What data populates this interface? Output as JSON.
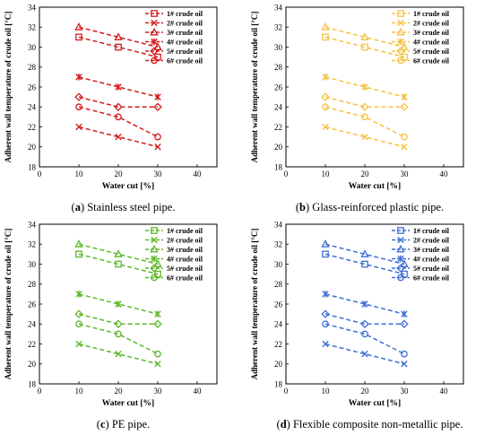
{
  "chart_data": [
    {
      "type": "line",
      "panel_letter": "a",
      "caption": "Stainless steel pipe.",
      "color": "#d41c1c",
      "xlabel": "Water cut [%]",
      "ylabel": "Adherent wall temperature of crude oil [°C]",
      "xlim": [
        0,
        45
      ],
      "ylim": [
        18,
        34
      ],
      "xticks": [
        0,
        10,
        20,
        30,
        40
      ],
      "yticks": [
        18,
        20,
        22,
        24,
        26,
        28,
        30,
        32,
        34
      ],
      "legend": "top-right",
      "x": [
        10,
        20,
        30
      ],
      "series": [
        {
          "name": "1# crude oil",
          "marker": "square",
          "values": [
            31,
            30,
            29
          ]
        },
        {
          "name": "2# crude oil",
          "marker": "x",
          "values": [
            22,
            21,
            20
          ]
        },
        {
          "name": "3# crude oil",
          "marker": "triangle",
          "values": [
            32,
            31,
            30
          ]
        },
        {
          "name": "4# crude oil",
          "marker": "star",
          "values": [
            27,
            26,
            25
          ]
        },
        {
          "name": "5# crude oil",
          "marker": "diamond",
          "values": [
            25,
            24,
            24
          ]
        },
        {
          "name": "6# crude oil",
          "marker": "circle",
          "values": [
            24,
            23,
            21
          ]
        }
      ]
    },
    {
      "type": "line",
      "panel_letter": "b",
      "caption": "Glass-reinforced plastic pipe.",
      "color": "#f5c342",
      "xlabel": "Water cut [%]",
      "ylabel": "Adherent wall temperature of crude oil [°C]",
      "xlim": [
        0,
        45
      ],
      "ylim": [
        18,
        34
      ],
      "xticks": [
        0,
        10,
        20,
        30,
        40
      ],
      "yticks": [
        18,
        20,
        22,
        24,
        26,
        28,
        30,
        32,
        34
      ],
      "legend": "top-right",
      "x": [
        10,
        20,
        30
      ],
      "series": [
        {
          "name": "1# crude oil",
          "marker": "square",
          "values": [
            31,
            30,
            29
          ]
        },
        {
          "name": "2# crude oil",
          "marker": "x",
          "values": [
            22,
            21,
            20
          ]
        },
        {
          "name": "3# crude oil",
          "marker": "triangle",
          "values": [
            32,
            31,
            30
          ]
        },
        {
          "name": "4# crude oil",
          "marker": "star",
          "values": [
            27,
            26,
            25
          ]
        },
        {
          "name": "5# crude oil",
          "marker": "diamond",
          "values": [
            25,
            24,
            24
          ]
        },
        {
          "name": "6# crude oil",
          "marker": "circle",
          "values": [
            24,
            23,
            21
          ]
        }
      ]
    },
    {
      "type": "line",
      "panel_letter": "c",
      "caption": "PE pipe.",
      "color": "#5cb82a",
      "xlabel": "Water cut [%]",
      "ylabel": "Adherent wall temperature of crude oil [°C]",
      "xlim": [
        0,
        45
      ],
      "ylim": [
        18,
        34
      ],
      "xticks": [
        0,
        10,
        20,
        30,
        40
      ],
      "yticks": [
        18,
        20,
        22,
        24,
        26,
        28,
        30,
        32,
        34
      ],
      "legend": "top-right",
      "x": [
        10,
        20,
        30
      ],
      "series": [
        {
          "name": "1# crude oil",
          "marker": "square",
          "values": [
            31,
            30,
            29
          ]
        },
        {
          "name": "2# crude oil",
          "marker": "x",
          "values": [
            22,
            21,
            20
          ]
        },
        {
          "name": "3# crude oil",
          "marker": "triangle",
          "values": [
            32,
            31,
            30
          ]
        },
        {
          "name": "4# crude oil",
          "marker": "star",
          "values": [
            27,
            26,
            25
          ]
        },
        {
          "name": "5# crude oil",
          "marker": "diamond",
          "values": [
            25,
            24,
            24
          ]
        },
        {
          "name": "6# crude oil",
          "marker": "circle",
          "values": [
            24,
            23,
            21
          ]
        }
      ]
    },
    {
      "type": "line",
      "panel_letter": "d",
      "caption": "Flexible composite non-metallic pipe.",
      "color": "#3f6fd8",
      "xlabel": "Water cut [%]",
      "ylabel": "Adherent wall temperature of crude oil [°C]",
      "xlim": [
        0,
        45
      ],
      "ylim": [
        18,
        34
      ],
      "xticks": [
        0,
        10,
        20,
        30,
        40
      ],
      "yticks": [
        18,
        20,
        22,
        24,
        26,
        28,
        30,
        32,
        34
      ],
      "legend": "top-right",
      "x": [
        10,
        20,
        30
      ],
      "series": [
        {
          "name": "1# crude oil",
          "marker": "square",
          "values": [
            31,
            30,
            29
          ]
        },
        {
          "name": "2# crude oil",
          "marker": "x",
          "values": [
            22,
            21,
            20
          ]
        },
        {
          "name": "3# crude oil",
          "marker": "triangle",
          "values": [
            32,
            31,
            30
          ]
        },
        {
          "name": "4# crude oil",
          "marker": "star",
          "values": [
            27,
            26,
            25
          ]
        },
        {
          "name": "5# crude oil",
          "marker": "diamond",
          "values": [
            25,
            24,
            24
          ]
        },
        {
          "name": "6# crude oil",
          "marker": "circle",
          "values": [
            24,
            23,
            21
          ]
        }
      ]
    }
  ]
}
